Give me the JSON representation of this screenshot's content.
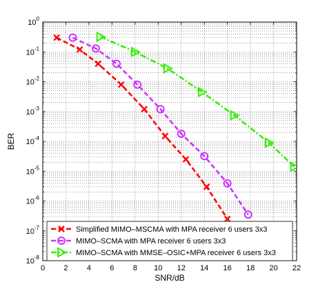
{
  "chart_data": {
    "type": "line",
    "xlabel": "SNR/dB",
    "ylabel": "BER",
    "y_scale": "log",
    "xlim": [
      0,
      22
    ],
    "ylim": [
      1e-08,
      1
    ],
    "x_ticks": [
      "0",
      "2",
      "4",
      "6",
      "8",
      "10",
      "12",
      "14",
      "16",
      "18",
      "20",
      "22"
    ],
    "y_ticks": [
      {
        "base": "10",
        "exp": "0"
      },
      {
        "base": "10",
        "exp": "-1"
      },
      {
        "base": "10",
        "exp": "-2"
      },
      {
        "base": "10",
        "exp": "-3"
      },
      {
        "base": "10",
        "exp": "-4"
      },
      {
        "base": "10",
        "exp": "-5"
      },
      {
        "base": "10",
        "exp": "-6"
      },
      {
        "base": "10",
        "exp": "-7"
      },
      {
        "base": "10",
        "exp": "-8"
      }
    ],
    "grid": true,
    "legend_position": "bottom-left",
    "series": [
      {
        "name": "Simplified MIMO–MSCMA with MPA receiver 6 users 3x3",
        "color": "#ff0000",
        "marker": "x",
        "line_style": "dashed",
        "x": [
          1.2,
          3.2,
          4.8,
          6.8,
          8.8,
          10.6,
          12.4,
          14.2,
          16.0
        ],
        "y": [
          0.3,
          0.12,
          0.04,
          0.008,
          0.0012,
          0.00015,
          2.5e-05,
          3e-06,
          2.5e-07
        ]
      },
      {
        "name": "MIMO–SCMA with MPA receiver 6 users 3x3",
        "color": "#cc33ff",
        "marker": "circle",
        "line_style": "dashed",
        "x": [
          2.6,
          4.6,
          6.4,
          8.2,
          10.2,
          12.0,
          14.0,
          16.0,
          17.8
        ],
        "y": [
          0.3,
          0.13,
          0.04,
          0.008,
          0.0012,
          0.00018,
          3.2e-05,
          3.9e-06,
          3.5e-07
        ]
      },
      {
        "name": "MIMO–SCMA with MMSE–OSIC+MPA receiver 6 users 3x3",
        "color": "#33ee00",
        "marker": "triangle-right",
        "line_style": "dash-dot",
        "x": [
          5.0,
          8.0,
          10.8,
          13.8,
          16.6,
          19.6,
          21.8
        ],
        "y": [
          0.32,
          0.1,
          0.028,
          0.0045,
          0.00075,
          9e-05,
          1.4e-05
        ]
      }
    ]
  }
}
